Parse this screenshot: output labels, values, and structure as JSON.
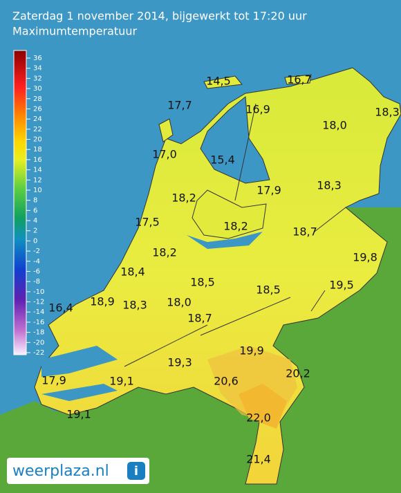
{
  "header": {
    "title": "Zaterdag 1 november 2014, bijgewerkt tot 17:20 uur",
    "subtitle": "Maximumtemperatuur"
  },
  "legend": {
    "ticks": [
      "36",
      "34",
      "32",
      "30",
      "28",
      "26",
      "24",
      "22",
      "20",
      "18",
      "16",
      "14",
      "12",
      "10",
      "8",
      "6",
      "4",
      "2",
      "0",
      "-2",
      "-4",
      "-6",
      "-8",
      "-10",
      "-12",
      "-14",
      "-16",
      "-18",
      "-20",
      "-22"
    ]
  },
  "stations": [
    "14,5",
    "16,7",
    "17,7",
    "16,9",
    "18,3",
    "18,0",
    "17,0",
    "15,4",
    "17,9",
    "18,3",
    "18,2",
    "17,5",
    "18,2",
    "18,7",
    "19,8",
    "18,2",
    "18,4",
    "18,5",
    "18,5",
    "19,5",
    "16,4",
    "18,9",
    "18,3",
    "18,0",
    "18,7",
    "19,9",
    "19,3",
    "20,6",
    "20,2",
    "17,9",
    "19,1",
    "19,1",
    "22,0",
    "21,4"
  ],
  "logo": {
    "text": "weerplaza.nl",
    "icon": "i"
  }
}
